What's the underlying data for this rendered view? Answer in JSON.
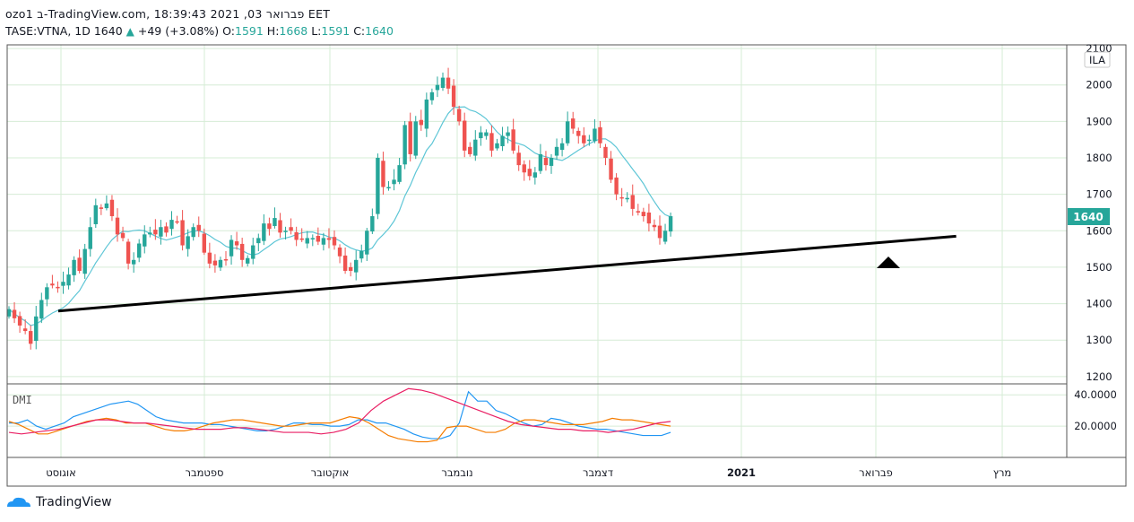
{
  "header": {
    "line1": "ozo1 ב-TradingView.com, פברואר 03, 2021 18:39:43 EET",
    "symbol": "TASE:VTNA, 1D",
    "last": "1640",
    "change": "+49 (+3.08%)",
    "o_label": "O:",
    "o": "1591",
    "h_label": "H:",
    "h": "1668",
    "l_label": "L:",
    "l": "1591",
    "c_label": "C:",
    "c": "1640"
  },
  "currency_badge": "ILA",
  "price_badge": "1640",
  "dmi_label": "DMI",
  "footer": {
    "brand": "TradingView"
  },
  "colors": {
    "up": "#26a69a",
    "down": "#ef5350",
    "ma": "#5ec6d6",
    "di_plus": "#2196f3",
    "di_minus": "#f57c00",
    "adx": "#e91e63"
  },
  "chart_data": [
    {
      "type": "candlestick",
      "title": "TASE:VTNA, 1D",
      "ylim": [
        1180,
        2110
      ],
      "yticks": [
        "1200",
        "1300",
        "1400",
        "1500",
        "1600",
        "1700",
        "1800",
        "1900",
        "2000",
        "2100"
      ],
      "x_tick_labels": [
        "אוגוסט",
        "ספטמבר",
        "אוקטובר",
        "נובמבר",
        "דצמבר",
        "2021",
        "פברואר",
        "מרץ"
      ],
      "trendline": {
        "from": [
          0,
          1380
        ],
        "to": [
          173,
          1585
        ]
      },
      "annotation": "triangle-up marker below trendline near last candle",
      "last_price": 1640,
      "closes": [
        1385,
        1360,
        1340,
        1325,
        1290,
        1365,
        1410,
        1445,
        1450,
        1445,
        1460,
        1480,
        1520,
        1490,
        1550,
        1610,
        1670,
        1660,
        1675,
        1640,
        1590,
        1580,
        1510,
        1520,
        1565,
        1590,
        1595,
        1590,
        1610,
        1595,
        1630,
        1625,
        1560,
        1585,
        1610,
        1600,
        1540,
        1510,
        1505,
        1520,
        1520,
        1575,
        1560,
        1520,
        1525,
        1560,
        1580,
        1620,
        1605,
        1635,
        1595,
        1600,
        1600,
        1575,
        1575,
        1580,
        1580,
        1570,
        1580,
        1575,
        1560,
        1530,
        1490,
        1490,
        1520,
        1545,
        1600,
        1640,
        1800,
        1720,
        1720,
        1740,
        1780,
        1890,
        1810,
        1900,
        1890,
        1960,
        1980,
        2000,
        2020,
        1990,
        1940,
        1900,
        1820,
        1810,
        1850,
        1870,
        1870,
        1820,
        1840,
        1860,
        1870,
        1820,
        1780,
        1760,
        1750,
        1760,
        1810,
        1780,
        1800,
        1830,
        1840,
        1900,
        1880,
        1860,
        1840,
        1850,
        1880,
        1840,
        1800,
        1740,
        1700,
        1690,
        1690,
        1660,
        1650,
        1640,
        1620,
        1610,
        1580,
        1600,
        1640
      ],
      "ma_overlay": true,
      "dmi": {
        "ylim": [
          0,
          47
        ],
        "yticks": [
          "20.0000",
          "40.0000"
        ],
        "series": [
          {
            "name": "+DI",
            "values": [
              22,
              22,
              24,
              20,
              18,
              20,
              22,
              26,
              28,
              30,
              32,
              34,
              35,
              36,
              34,
              30,
              26,
              24,
              23,
              22,
              22,
              22,
              21,
              21,
              20,
              19,
              18,
              17,
              17,
              18,
              20,
              22,
              22,
              21,
              21,
              20,
              20,
              21,
              24,
              24,
              22,
              22,
              20,
              18,
              15,
              13,
              12,
              12,
              14,
              22,
              42,
              36,
              36,
              30,
              28,
              25,
              22,
              20,
              21,
              25,
              24,
              22,
              20,
              19,
              18,
              18,
              17,
              16,
              15,
              14,
              14,
              14,
              16
            ]
          },
          {
            "name": "-DI",
            "values": [
              23,
              21,
              18,
              15,
              15,
              17,
              19,
              21,
              23,
              24,
              25,
              24,
              22,
              22,
              22,
              20,
              18,
              17,
              17,
              18,
              20,
              22,
              23,
              24,
              24,
              23,
              22,
              21,
              20,
              20,
              21,
              22,
              22,
              22,
              24,
              26,
              25,
              22,
              18,
              14,
              12,
              11,
              10,
              10,
              11,
              19,
              20,
              20,
              18,
              16,
              16,
              18,
              22,
              24,
              24,
              23,
              22,
              21,
              21,
              21,
              22,
              23,
              25,
              24,
              24,
              23,
              22,
              21,
              20
            ]
          },
          {
            "name": "ADX",
            "values": [
              16,
              15,
              16,
              17,
              18,
              20,
              22,
              24,
              24,
              23,
              22,
              22,
              21,
              20,
              19,
              18,
              18,
              18,
              19,
              19,
              18,
              17,
              16,
              16,
              16,
              15,
              16,
              18,
              22,
              30,
              36,
              40,
              44,
              43,
              41,
              38,
              35,
              32,
              29,
              26,
              23,
              21,
              20,
              19,
              18,
              18,
              17,
              17,
              16,
              17,
              18,
              20,
              22,
              23
            ]
          }
        ]
      }
    }
  ]
}
